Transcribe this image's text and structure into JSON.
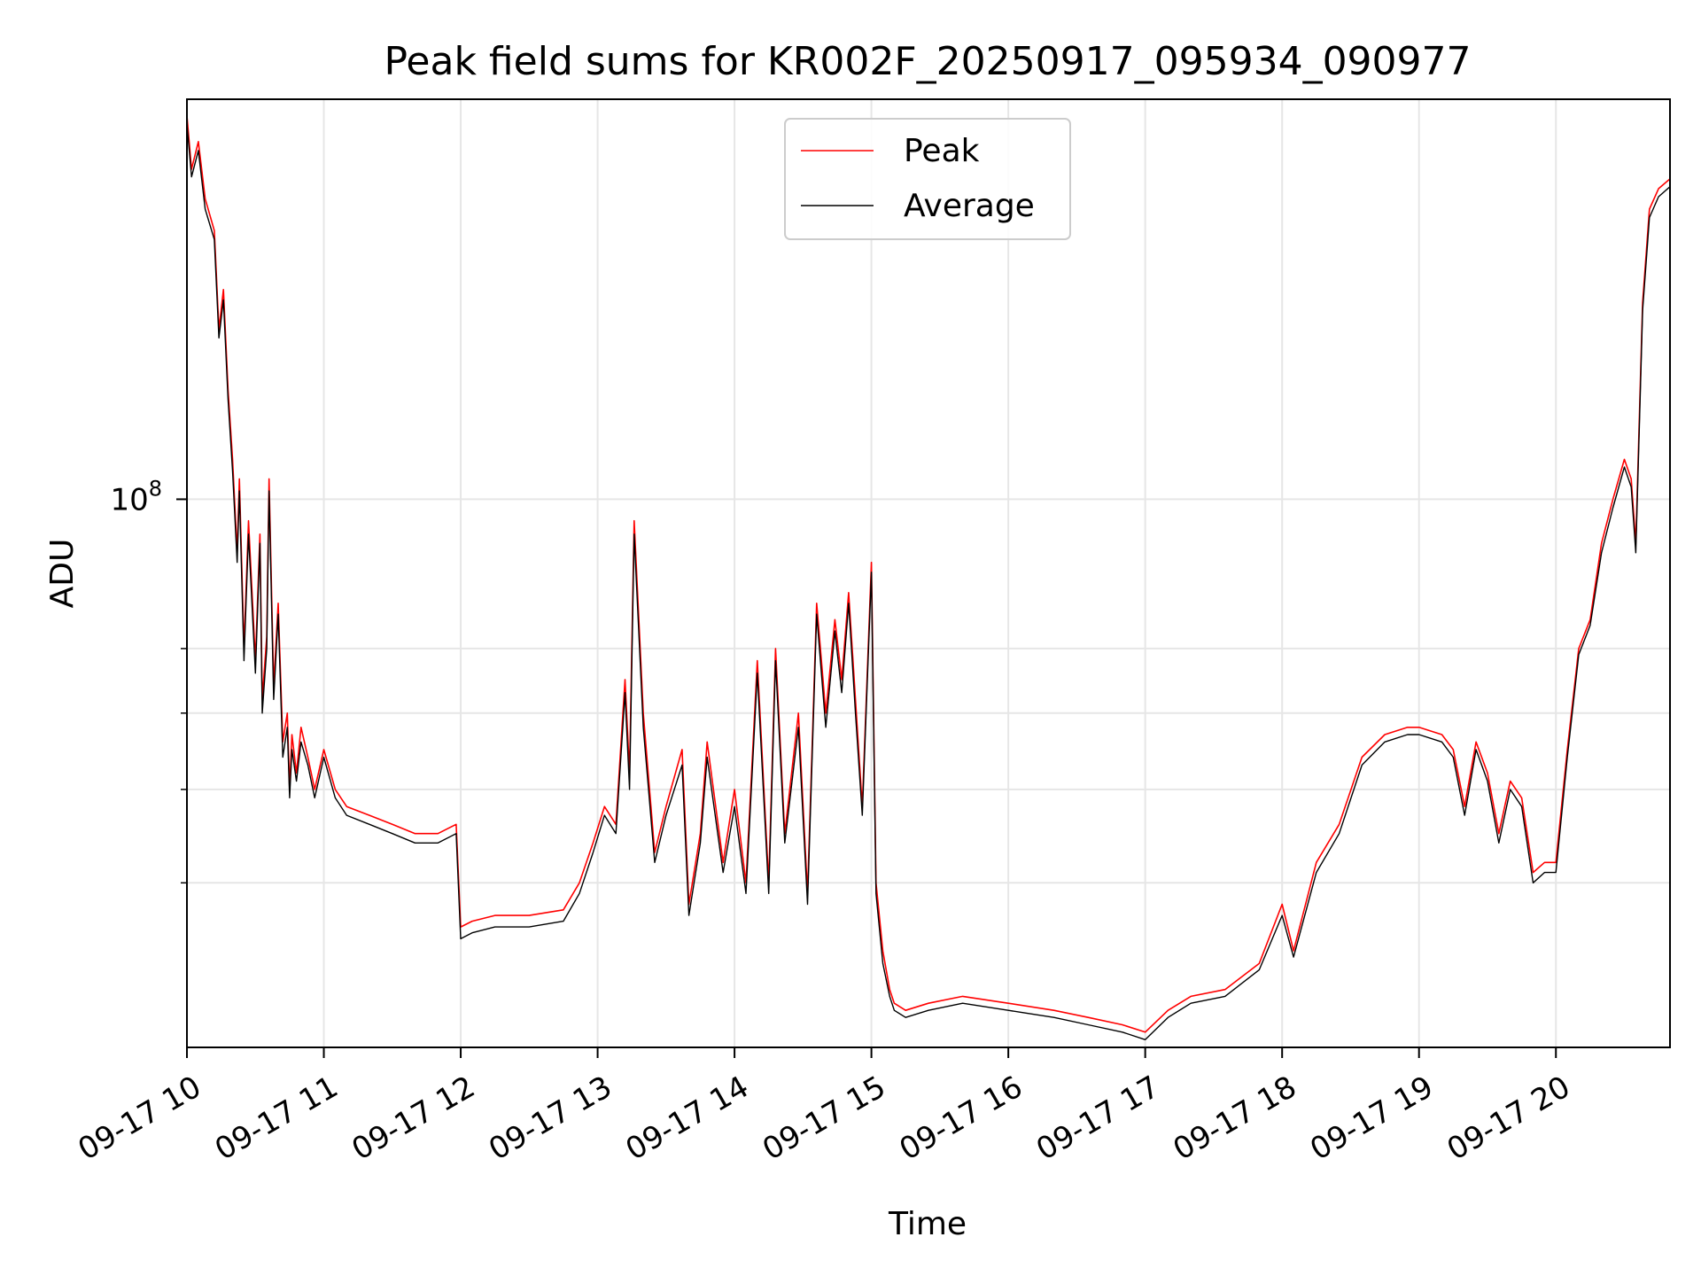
{
  "chart_data": {
    "type": "line",
    "title": "Peak field sums for KR002F_20250917_095934_090977",
    "xlabel": "Time",
    "ylabel": "ADU",
    "x_range": [
      "2025-09-17T10:00",
      "2025-09-17T20:50"
    ],
    "y_scale": "log",
    "ylim": [
      27000000,
      260000000
    ],
    "y_major_ticks": [
      {
        "value": 100000000,
        "base": "10",
        "exp": "8"
      }
    ],
    "y_minor_ticks": [
      40000000,
      50000000,
      60000000,
      70000000
    ],
    "grid": true,
    "legend_position": "top-center",
    "x_ticks": [
      {
        "t": "2025-09-17T10:00",
        "label": "09-17 10"
      },
      {
        "t": "2025-09-17T11:00",
        "label": "09-17 11"
      },
      {
        "t": "2025-09-17T12:00",
        "label": "09-17 12"
      },
      {
        "t": "2025-09-17T13:00",
        "label": "09-17 13"
      },
      {
        "t": "2025-09-17T14:00",
        "label": "09-17 14"
      },
      {
        "t": "2025-09-17T15:00",
        "label": "09-17 15"
      },
      {
        "t": "2025-09-17T16:00",
        "label": "09-17 16"
      },
      {
        "t": "2025-09-17T17:00",
        "label": "09-17 17"
      },
      {
        "t": "2025-09-17T18:00",
        "label": "09-17 18"
      },
      {
        "t": "2025-09-17T19:00",
        "label": "09-17 19"
      },
      {
        "t": "2025-09-17T20:00",
        "label": "09-17 20"
      }
    ],
    "series": [
      {
        "name": "Peak",
        "color": "#ff0000"
      },
      {
        "name": "Average",
        "color": "#000000"
      }
    ],
    "x": [
      "2025-09-17T10:00",
      "2025-09-17T10:02",
      "2025-09-17T10:05",
      "2025-09-17T10:08",
      "2025-09-17T10:12",
      "2025-09-17T10:14",
      "2025-09-17T10:16",
      "2025-09-17T10:18",
      "2025-09-17T10:20",
      "2025-09-17T10:22",
      "2025-09-17T10:23",
      "2025-09-17T10:25",
      "2025-09-17T10:27",
      "2025-09-17T10:30",
      "2025-09-17T10:32",
      "2025-09-17T10:33",
      "2025-09-17T10:35",
      "2025-09-17T10:36",
      "2025-09-17T10:38",
      "2025-09-17T10:40",
      "2025-09-17T10:42",
      "2025-09-17T10:44",
      "2025-09-17T10:45",
      "2025-09-17T10:46",
      "2025-09-17T10:48",
      "2025-09-17T10:50",
      "2025-09-17T10:53",
      "2025-09-17T10:56",
      "2025-09-17T11:00",
      "2025-09-17T11:05",
      "2025-09-17T11:10",
      "2025-09-17T11:20",
      "2025-09-17T11:30",
      "2025-09-17T11:40",
      "2025-09-17T11:50",
      "2025-09-17T11:58",
      "2025-09-17T12:00",
      "2025-09-17T12:05",
      "2025-09-17T12:15",
      "2025-09-17T12:30",
      "2025-09-17T12:45",
      "2025-09-17T12:52",
      "2025-09-17T12:58",
      "2025-09-17T13:03",
      "2025-09-17T13:08",
      "2025-09-17T13:12",
      "2025-09-17T13:14",
      "2025-09-17T13:16",
      "2025-09-17T13:20",
      "2025-09-17T13:25",
      "2025-09-17T13:30",
      "2025-09-17T13:37",
      "2025-09-17T13:40",
      "2025-09-17T13:45",
      "2025-09-17T13:48",
      "2025-09-17T13:55",
      "2025-09-17T14:00",
      "2025-09-17T14:05",
      "2025-09-17T14:10",
      "2025-09-17T14:15",
      "2025-09-17T14:18",
      "2025-09-17T14:22",
      "2025-09-17T14:28",
      "2025-09-17T14:32",
      "2025-09-17T14:36",
      "2025-09-17T14:40",
      "2025-09-17T14:44",
      "2025-09-17T14:47",
      "2025-09-17T14:50",
      "2025-09-17T14:53",
      "2025-09-17T14:56",
      "2025-09-17T15:00",
      "2025-09-17T15:02",
      "2025-09-17T15:05",
      "2025-09-17T15:08",
      "2025-09-17T15:10",
      "2025-09-17T15:15",
      "2025-09-17T15:25",
      "2025-09-17T15:40",
      "2025-09-17T16:00",
      "2025-09-17T16:20",
      "2025-09-17T16:35",
      "2025-09-17T16:50",
      "2025-09-17T17:00",
      "2025-09-17T17:10",
      "2025-09-17T17:20",
      "2025-09-17T17:35",
      "2025-09-17T17:50",
      "2025-09-17T18:00",
      "2025-09-17T18:05",
      "2025-09-17T18:15",
      "2025-09-17T18:25",
      "2025-09-17T18:35",
      "2025-09-17T18:45",
      "2025-09-17T18:55",
      "2025-09-17T19:00",
      "2025-09-17T19:10",
      "2025-09-17T19:15",
      "2025-09-17T19:20",
      "2025-09-17T19:25",
      "2025-09-17T19:30",
      "2025-09-17T19:35",
      "2025-09-17T19:40",
      "2025-09-17T19:45",
      "2025-09-17T19:50",
      "2025-09-17T19:55",
      "2025-09-17T20:00",
      "2025-09-17T20:05",
      "2025-09-17T20:10",
      "2025-09-17T20:15",
      "2025-09-17T20:20",
      "2025-09-17T20:25",
      "2025-09-17T20:30",
      "2025-09-17T20:33",
      "2025-09-17T20:35",
      "2025-09-17T20:38",
      "2025-09-17T20:41",
      "2025-09-17T20:45",
      "2025-09-17T20:50"
    ],
    "peak": [
      250000000,
      220000000,
      235000000,
      205000000,
      190000000,
      150000000,
      165000000,
      130000000,
      110000000,
      88000000,
      105000000,
      70000000,
      95000000,
      68000000,
      92000000,
      62000000,
      72000000,
      105000000,
      64000000,
      78000000,
      56000000,
      60000000,
      50000000,
      57000000,
      52000000,
      58000000,
      54000000,
      50000000,
      55000000,
      50000000,
      48000000,
      47000000,
      46000000,
      45000000,
      45000000,
      46000000,
      36000000,
      36500000,
      37000000,
      37000000,
      37500000,
      40000000,
      44000000,
      48000000,
      46000000,
      65000000,
      52000000,
      95000000,
      60000000,
      43000000,
      48000000,
      55000000,
      38000000,
      45000000,
      56000000,
      42000000,
      50000000,
      40000000,
      68000000,
      40000000,
      70000000,
      45000000,
      60000000,
      39000000,
      78000000,
      60000000,
      75000000,
      65000000,
      80000000,
      62000000,
      48000000,
      86000000,
      40000000,
      34000000,
      31000000,
      30000000,
      29500000,
      30000000,
      30500000,
      30000000,
      29500000,
      29000000,
      28500000,
      28000000,
      29500000,
      30500000,
      31000000,
      33000000,
      38000000,
      34000000,
      42000000,
      46000000,
      54000000,
      57000000,
      58000000,
      58000000,
      57000000,
      55000000,
      48000000,
      56000000,
      52000000,
      45000000,
      51000000,
      49000000,
      41000000,
      42000000,
      42000000,
      55000000,
      70000000,
      75000000,
      90000000,
      100000000,
      110000000,
      105000000,
      90000000,
      160000000,
      200000000,
      210000000,
      215000000
    ],
    "average": [
      245000000,
      216000000,
      230000000,
      200000000,
      186000000,
      147000000,
      161000000,
      127000000,
      107000000,
      86000000,
      102000000,
      68000000,
      92000000,
      66000000,
      90000000,
      60000000,
      70000000,
      102000000,
      62000000,
      76000000,
      54000000,
      58000000,
      49000000,
      55000000,
      51000000,
      56000000,
      53000000,
      49000000,
      54000000,
      49000000,
      47000000,
      46000000,
      45000000,
      44000000,
      44000000,
      45000000,
      35000000,
      35500000,
      36000000,
      36000000,
      36500000,
      39000000,
      43000000,
      47000000,
      45000000,
      63000000,
      50000000,
      92000000,
      58000000,
      42000000,
      47000000,
      53000000,
      37000000,
      44000000,
      54000000,
      41000000,
      48000000,
      39000000,
      66000000,
      39000000,
      68000000,
      44000000,
      58000000,
      38000000,
      76000000,
      58000000,
      73000000,
      63000000,
      78000000,
      60000000,
      47000000,
      84000000,
      39000000,
      33000000,
      30500000,
      29500000,
      29000000,
      29500000,
      30000000,
      29500000,
      29000000,
      28500000,
      28000000,
      27500000,
      29000000,
      30000000,
      30500000,
      32500000,
      37000000,
      33500000,
      41000000,
      45000000,
      53000000,
      56000000,
      57000000,
      57000000,
      56000000,
      54000000,
      47000000,
      55000000,
      51000000,
      44000000,
      50000000,
      48000000,
      40000000,
      41000000,
      41000000,
      54000000,
      69000000,
      74000000,
      88000000,
      98000000,
      108000000,
      103000000,
      88000000,
      157000000,
      196000000,
      206000000,
      211000000
    ]
  }
}
